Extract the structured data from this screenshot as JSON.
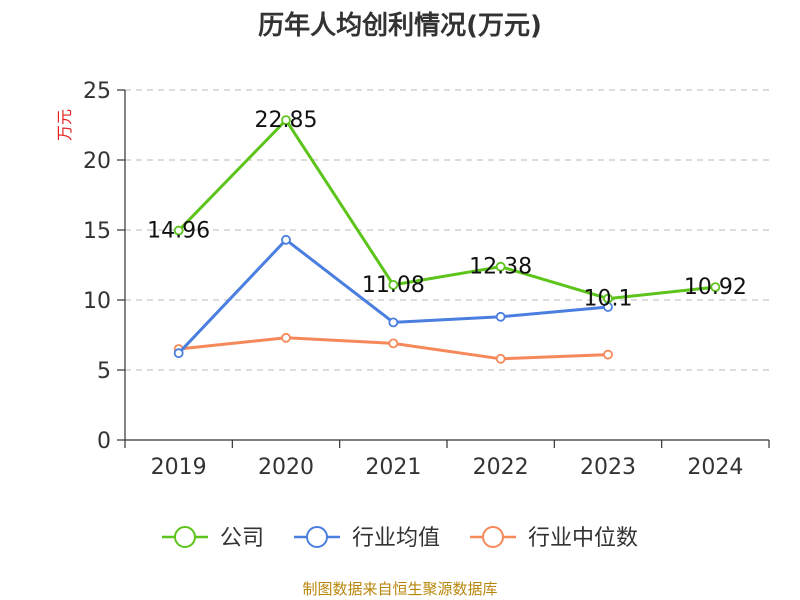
{
  "chart_data": {
    "type": "line",
    "title": "历年人均创利情况(万元)",
    "ylabel": "万元",
    "categories": [
      "2019",
      "2020",
      "2021",
      "2022",
      "2023",
      "2024"
    ],
    "ylim": [
      0,
      25
    ],
    "yticks": [
      0,
      5,
      10,
      15,
      20,
      25
    ],
    "grid": "horizontal-dashed",
    "legend_position": "bottom",
    "series": [
      {
        "name": "公司",
        "color": "#5cc41a",
        "values": [
          14.96,
          22.85,
          11.08,
          12.38,
          10.1,
          10.92
        ],
        "labels": [
          "14.96",
          "22.85",
          "11.08",
          "12.38",
          "10.1",
          "10.92"
        ]
      },
      {
        "name": "行业均值",
        "color": "#4a7fe0",
        "values": [
          6.2,
          14.3,
          8.4,
          8.8,
          9.5,
          null
        ],
        "labels": []
      },
      {
        "name": "行业中位数",
        "color": "#f5895a",
        "values": [
          6.5,
          7.3,
          6.9,
          5.8,
          6.1,
          null
        ],
        "labels": []
      }
    ]
  },
  "source": "制图数据来自恒生聚源数据库"
}
